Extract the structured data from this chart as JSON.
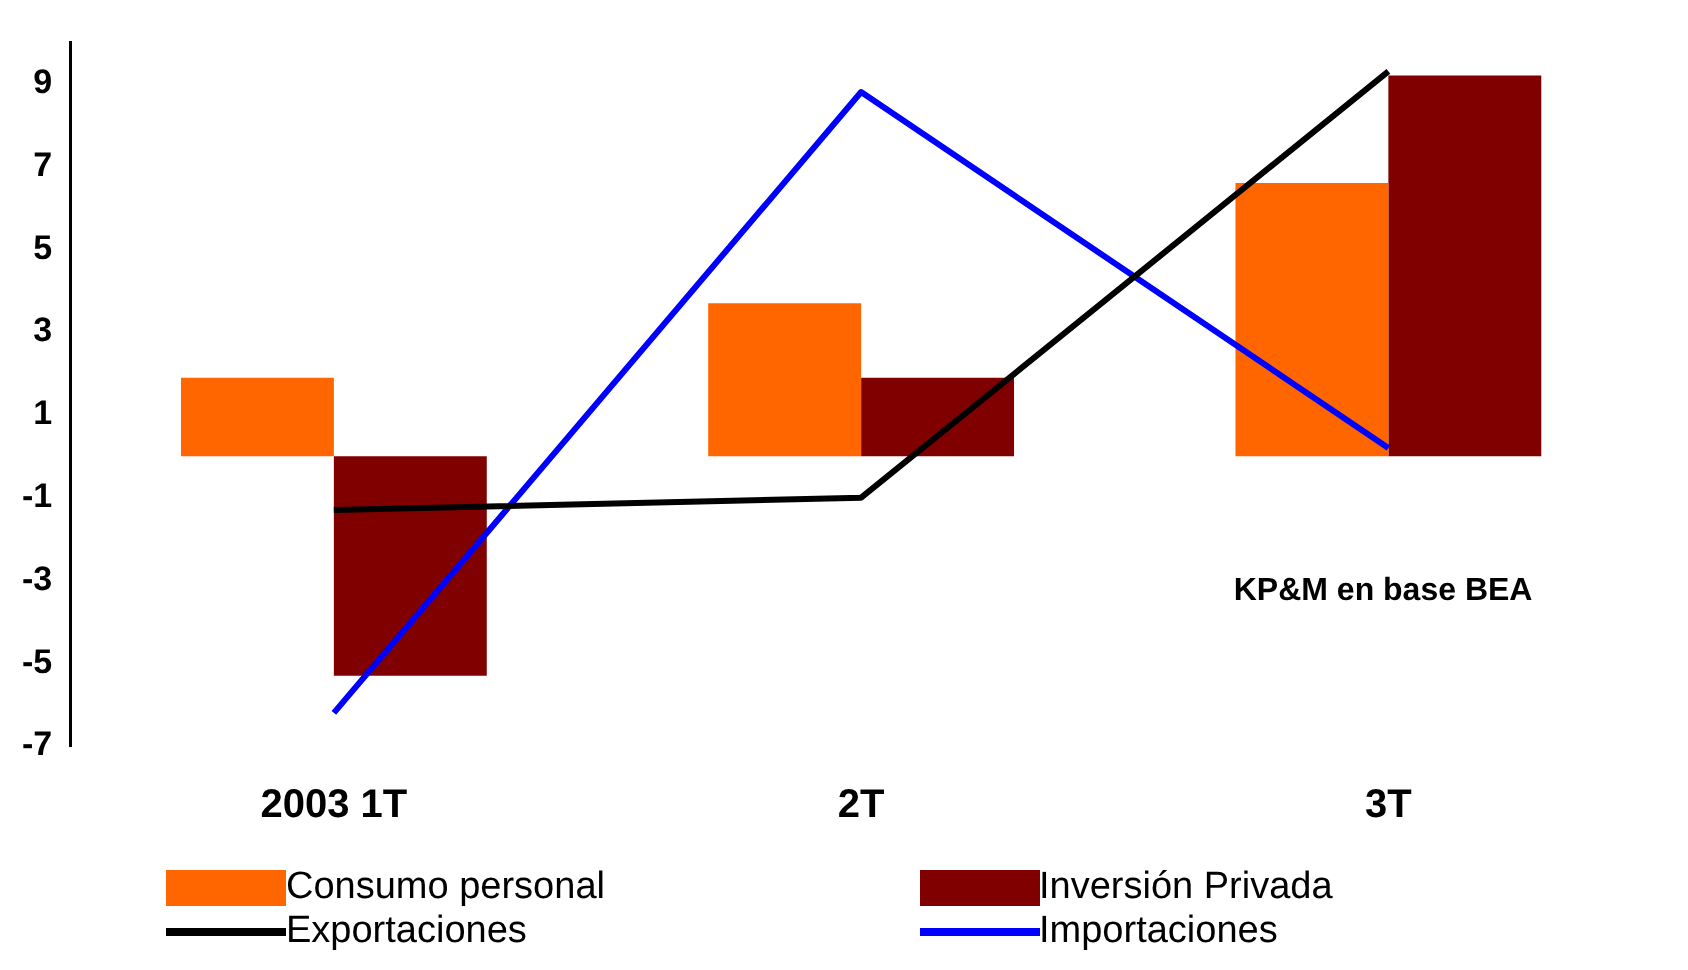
{
  "chart_data": {
    "type": "bar",
    "categories": [
      "2003 1T",
      "2T",
      "3T"
    ],
    "series": [
      {
        "name": "Consumo personal",
        "color": "#ff6600",
        "values": [
          1.9,
          3.7,
          6.6
        ]
      },
      {
        "name": "Inversión Privada",
        "color": "#800000",
        "values": [
          -5.3,
          1.9,
          9.2
        ]
      },
      {
        "name": "Exportaciones",
        "type": "line",
        "color": "#000000",
        "values": [
          -1.3,
          -1.0,
          9.3
        ]
      },
      {
        "name": "Importaciones",
        "type": "line",
        "color": "#0000ff",
        "values": [
          -6.2,
          8.8,
          0.2
        ]
      }
    ],
    "ylim": [
      -7,
      10
    ],
    "yticks": [
      -7,
      -5,
      -3,
      -1,
      1,
      3,
      5,
      7,
      9
    ],
    "grid": false,
    "legend": "bottom",
    "marker": "none",
    "annotations": [
      "KP&M en base BEA"
    ]
  }
}
